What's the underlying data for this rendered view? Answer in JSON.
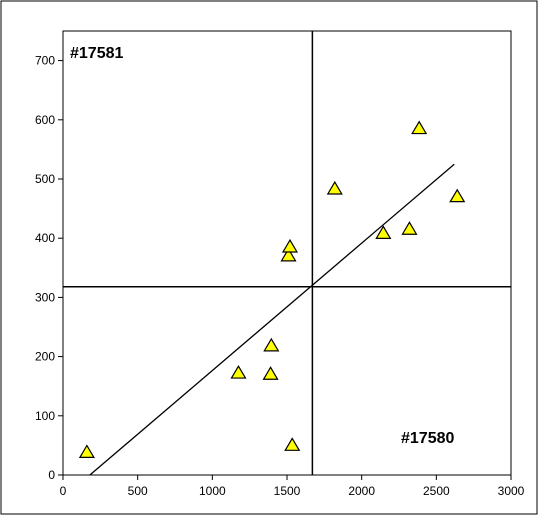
{
  "chart_data": {
    "type": "scatter",
    "title": "",
    "xlabel": "",
    "ylabel": "",
    "xlim": [
      0,
      3000
    ],
    "ylim": [
      0,
      750
    ],
    "x_ticks": [
      0,
      500,
      1000,
      1500,
      2000,
      2500,
      3000
    ],
    "y_ticks": [
      0,
      100,
      200,
      300,
      400,
      500,
      600,
      700
    ],
    "grid": false,
    "legend": "none",
    "marker": "triangle",
    "marker_color": "#ffff00",
    "marker_edge_color": "#000000",
    "series": [
      {
        "points": [
          {
            "x": 160,
            "y": 38
          },
          {
            "x": 1175,
            "y": 172
          },
          {
            "x": 1390,
            "y": 170
          },
          {
            "x": 1395,
            "y": 218
          },
          {
            "x": 1510,
            "y": 370
          },
          {
            "x": 1520,
            "y": 385
          },
          {
            "x": 1535,
            "y": 50
          },
          {
            "x": 1820,
            "y": 483
          },
          {
            "x": 2145,
            "y": 408
          },
          {
            "x": 2320,
            "y": 415
          },
          {
            "x": 2385,
            "y": 585
          },
          {
            "x": 2640,
            "y": 470
          }
        ]
      }
    ],
    "trend_line": {
      "x1": 180,
      "y1": 0,
      "x2": 2620,
      "y2": 525
    },
    "reference_lines": {
      "vertical_x": 1670,
      "horizontal_y": 318
    },
    "corner_labels": {
      "top_left": "#17581",
      "bottom_right": "#17580"
    }
  }
}
